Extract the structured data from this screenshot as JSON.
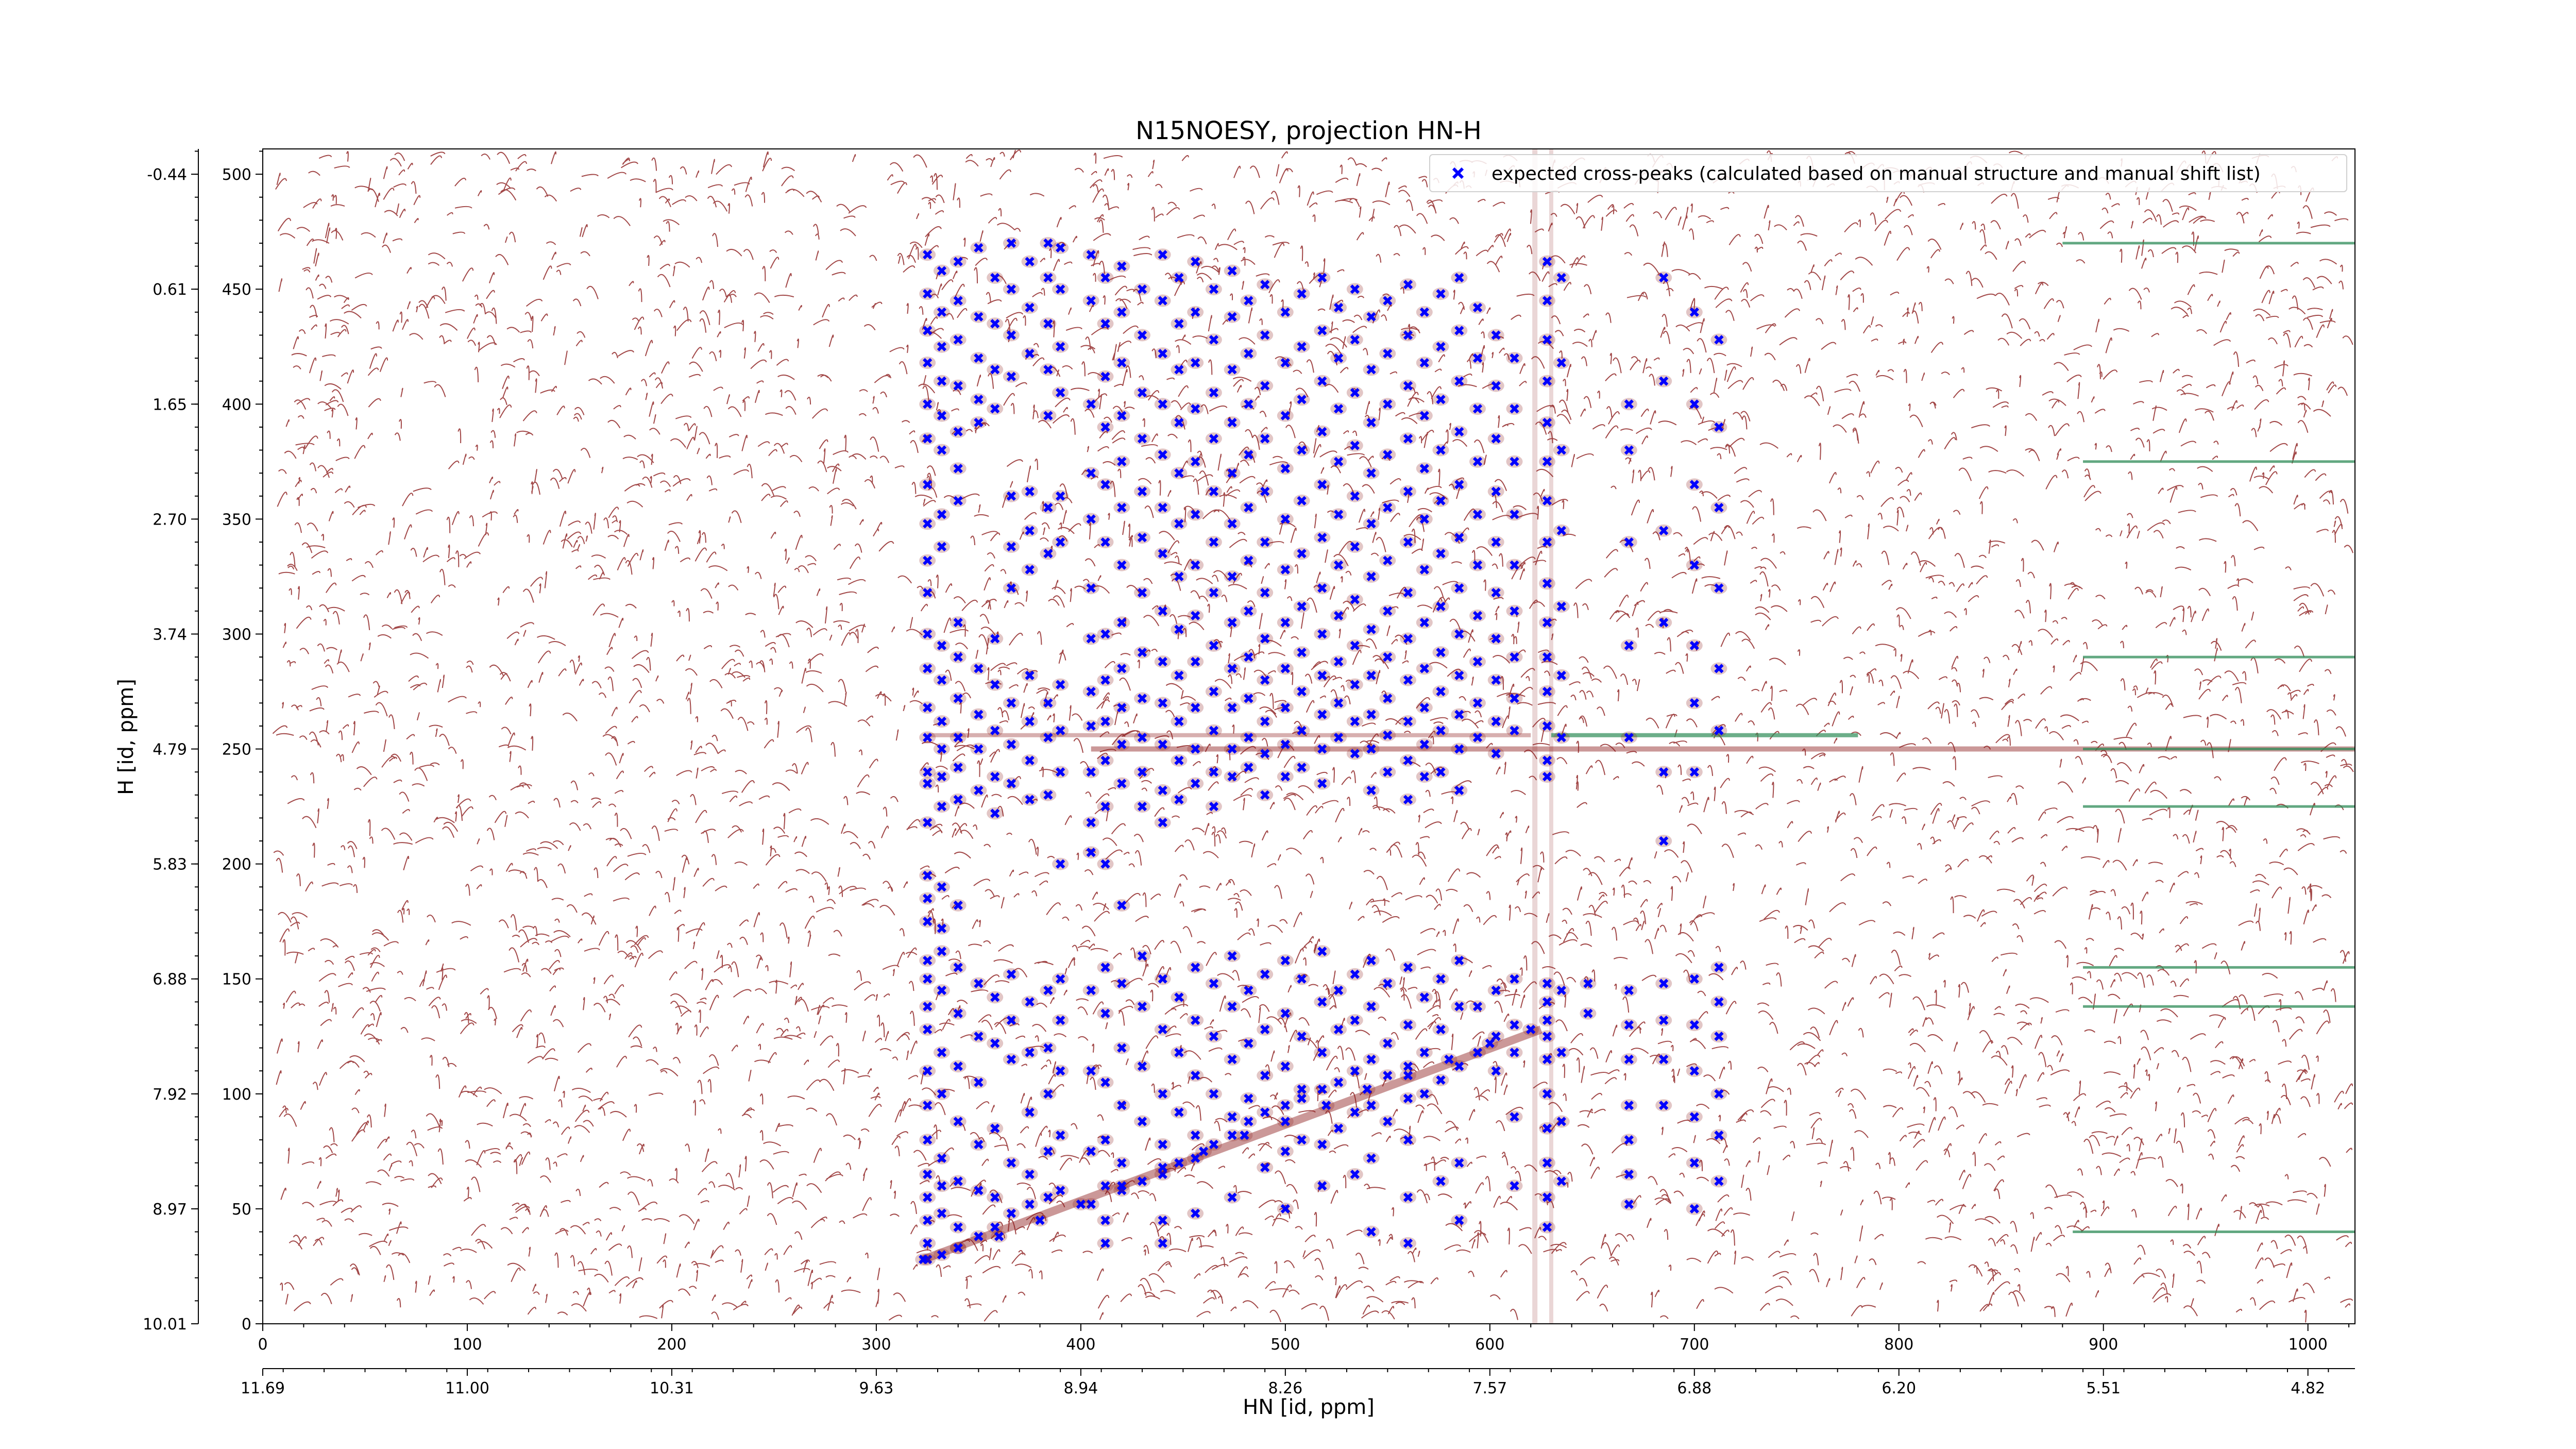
{
  "chart_data": {
    "type": "scatter",
    "title": "N15NOESY, projection HN-H",
    "xlabel": "HN [id, ppm]",
    "ylabel": "H [id, ppm]",
    "xlim": [
      0,
      1023
    ],
    "ylim": [
      0,
      511
    ],
    "x_index_ticks": [
      0,
      100,
      200,
      300,
      400,
      500,
      600,
      700,
      800,
      900,
      1000
    ],
    "x_ppm_ticks": [
      "11.69",
      "11.00",
      "10.31",
      "9.63",
      "8.94",
      "8.26",
      "7.57",
      "6.88",
      "6.20",
      "5.51",
      "4.82"
    ],
    "y_index_ticks": [
      0,
      50,
      100,
      150,
      200,
      250,
      300,
      350,
      400,
      450,
      500
    ],
    "y_ppm_ticks": [
      "10.01",
      "8.97",
      "7.92",
      "6.88",
      "5.83",
      "4.79",
      "3.74",
      "2.70",
      "1.65",
      "0.61",
      "-0.44"
    ],
    "legend": {
      "position": "top-right",
      "entries": [
        "expected cross-peaks (calculated based on manual structure and manual shift list)"
      ]
    },
    "colors": {
      "peaks": "#0000ff",
      "positive_contours": "#8b1a1a",
      "negative_contours": "#2e8b57"
    },
    "series": [
      {
        "name": "expected cross-peaks (calculated based on manual structure and manual shift list)",
        "marker": "x",
        "columns": [
          {
            "x": 325,
            "y": [
              465,
              448,
              432,
              418,
              400,
              385,
              365,
              348,
              332,
              318,
              300,
              285,
              268,
              255,
              240,
              235,
              218,
              195,
              185,
              175,
              158,
              150,
              138,
              128,
              110,
              95,
              80,
              65,
              55,
              45,
              35,
              28
            ]
          },
          {
            "x": 332,
            "y": [
              458,
              440,
              425,
              410,
              395,
              380,
              352,
              338,
              295,
              280,
              262,
              250,
              238,
              225,
              190,
              172,
              162,
              145,
              118,
              100,
              72,
              60,
              48,
              30
            ]
          },
          {
            "x": 340,
            "y": [
              462,
              445,
              428,
              408,
              388,
              372,
              358,
              305,
              290,
              272,
              255,
              242,
              228,
              182,
              155,
              135,
              112,
              88,
              62,
              42,
              33
            ]
          },
          {
            "x": 350,
            "y": [
              468,
              438,
              420,
              402,
              392,
              285,
              265,
              250,
              232,
              148,
              125,
              105,
              78,
              58,
              38
            ]
          },
          {
            "x": 358,
            "y": [
              455,
              435,
              415,
              398,
              298,
              278,
              258,
              238,
              222,
              142,
              122,
              85,
              55,
              42
            ]
          },
          {
            "x": 366,
            "y": [
              470,
              450,
              430,
              412,
              360,
              338,
              320,
              270,
              252,
              235,
              152,
              132,
              115,
              70,
              48
            ]
          },
          {
            "x": 375,
            "y": [
              462,
              442,
              422,
              362,
              345,
              328,
              282,
              262,
              245,
              228,
              140,
              118,
              92,
              65,
              52
            ]
          },
          {
            "x": 384,
            "y": [
              470,
              455,
              435,
              415,
              395,
              355,
              335,
              270,
              255,
              230,
              145,
              120,
              100,
              75,
              55
            ]
          },
          {
            "x": 390,
            "y": [
              468,
              450,
              425,
              405,
              360,
              340,
              278,
              258,
              240,
              200,
              150,
              132,
              110,
              82,
              58
            ]
          },
          {
            "x": 405,
            "y": [
              465,
              445,
              400,
              370,
              350,
              320,
              298,
              275,
              260,
              240,
              218,
              205,
              145,
              110,
              75,
              52
            ]
          },
          {
            "x": 412,
            "y": [
              455,
              435,
              412,
              390,
              365,
              340,
              300,
              280,
              262,
              245,
              225,
              200,
              155,
              135,
              105,
              80,
              60,
              45,
              35
            ]
          },
          {
            "x": 420,
            "y": [
              460,
              440,
              418,
              395,
              375,
              355,
              330,
              305,
              285,
              268,
              252,
              235,
              182,
              148,
              120,
              95,
              70,
              58
            ]
          },
          {
            "x": 430,
            "y": [
              450,
              430,
              405,
              385,
              362,
              342,
              318,
              292,
              272,
              255,
              240,
              225,
              160,
              138,
              112,
              88,
              62
            ]
          },
          {
            "x": 440,
            "y": [
              465,
              445,
              422,
              400,
              378,
              355,
              335,
              310,
              288,
              270,
              252,
              232,
              218,
              150,
              128,
              100,
              78,
              65,
              45,
              35
            ]
          },
          {
            "x": 448,
            "y": [
              455,
              435,
              415,
              392,
              370,
              348,
              325,
              302,
              282,
              262,
              245,
              228,
              142,
              118,
              92,
              70
            ]
          },
          {
            "x": 456,
            "y": [
              462,
              440,
              418,
              398,
              375,
              352,
              330,
              308,
              288,
              268,
              250,
              235,
              155,
              132,
              108,
              82,
              72,
              48
            ]
          },
          {
            "x": 465,
            "y": [
              450,
              428,
              405,
              385,
              362,
              340,
              318,
              295,
              275,
              258,
              240,
              225,
              148,
              125,
              100,
              78
            ]
          },
          {
            "x": 474,
            "y": [
              458,
              438,
              415,
              392,
              370,
              348,
              325,
              305,
              285,
              268,
              250,
              238,
              160,
              138,
              115,
              90,
              82,
              55
            ]
          },
          {
            "x": 482,
            "y": [
              445,
              422,
              400,
              378,
              355,
              332,
              310,
              290,
              272,
              255,
              242,
              145,
              122,
              98,
              88
            ]
          },
          {
            "x": 490,
            "y": [
              452,
              430,
              408,
              385,
              362,
              340,
              318,
              298,
              280,
              262,
              248,
              230,
              152,
              128,
              108,
              92,
              68
            ]
          },
          {
            "x": 500,
            "y": [
              440,
              418,
              395,
              372,
              350,
              328,
              305,
              285,
              268,
              252,
              238,
              158,
              135,
              112,
              95,
              75,
              50
            ]
          },
          {
            "x": 508,
            "y": [
              448,
              425,
              402,
              380,
              358,
              335,
              312,
              292,
              275,
              258,
              242,
              150,
              125,
              102,
              98,
              80
            ]
          },
          {
            "x": 518,
            "y": [
              455,
              432,
              410,
              388,
              365,
              342,
              320,
              300,
              282,
              265,
              250,
              235,
              162,
              140,
              118,
              102,
              78,
              60
            ]
          },
          {
            "x": 526,
            "y": [
              442,
              420,
              398,
              375,
              352,
              330,
              308,
              288,
              270,
              255,
              145,
              128,
              105,
              85
            ]
          },
          {
            "x": 534,
            "y": [
              450,
              428,
              405,
              382,
              360,
              338,
              315,
              295,
              278,
              262,
              248,
              152,
              132,
              110,
              92,
              65
            ]
          },
          {
            "x": 542,
            "y": [
              438,
              415,
              392,
              370,
              348,
              325,
              302,
              282,
              265,
              250,
              232,
              158,
              138,
              115,
              95,
              72,
              40
            ]
          },
          {
            "x": 550,
            "y": [
              445,
              422,
              400,
              378,
              355,
              332,
              310,
              290,
              272,
              256,
              240,
              148,
              122,
              108,
              88
            ]
          },
          {
            "x": 560,
            "y": [
              452,
              430,
              408,
              385,
              362,
              340,
              318,
              298,
              280,
              262,
              245,
              228,
              155,
              130,
              112,
              98,
              80,
              55,
              35
            ]
          },
          {
            "x": 568,
            "y": [
              440,
              418,
              395,
              372,
              350,
              328,
              305,
              285,
              268,
              252,
              238,
              142,
              118,
              100
            ]
          },
          {
            "x": 576,
            "y": [
              448,
              425,
              402,
              380,
              358,
              335,
              312,
              292,
              275,
              258,
              240,
              150,
              128,
              106,
              62
            ]
          },
          {
            "x": 585,
            "y": [
              455,
              432,
              410,
              388,
              365,
              342,
              320,
              300,
              282,
              265,
              250,
              232,
              158,
              138,
              112,
              70,
              45
            ]
          },
          {
            "x": 594,
            "y": [
              442,
              420,
              398,
              375,
              352,
              330,
              308,
              288,
              270,
              255,
              138,
              118
            ]
          },
          {
            "x": 603,
            "y": [
              430,
              408,
              385,
              362,
              340,
              318,
              298,
              280,
              262,
              248,
              145,
              125,
              110
            ]
          },
          {
            "x": 612,
            "y": [
              420,
              398,
              375,
              352,
              330,
              310,
              290,
              272,
              258,
              150,
              130,
              118,
              90,
              60
            ]
          },
          {
            "x": 628,
            "y": [
              462,
              445,
              428,
              410,
              392,
              375,
              358,
              340,
              322,
              305,
              290,
              275,
              260,
              245,
              238,
              148,
              140,
              132,
              125,
              115,
              100,
              85,
              70,
              55,
              42
            ]
          },
          {
            "x": 635,
            "y": [
              455,
              418,
              380,
              345,
              312,
              282,
              255,
              145,
              118,
              88,
              62
            ]
          },
          {
            "x": 648,
            "y": [
              148,
              135
            ]
          },
          {
            "x": 668,
            "y": [
              400,
              380,
              340,
              295,
              255,
              145,
              130,
              115,
              95,
              80,
              65,
              52
            ]
          },
          {
            "x": 685,
            "y": [
              455,
              410,
              345,
              305,
              240,
              210,
              148,
              132,
              115,
              95
            ]
          },
          {
            "x": 700,
            "y": [
              440,
              400,
              365,
              330,
              295,
              270,
              240,
              150,
              130,
              110,
              90,
              70,
              50
            ]
          },
          {
            "x": 712,
            "y": [
              428,
              390,
              355,
              320,
              285,
              258,
              155,
              140,
              125,
              100,
              82,
              62
            ]
          }
        ],
        "diagonal": [
          [
            323,
            28
          ],
          [
            340,
            33
          ],
          [
            360,
            38
          ],
          [
            380,
            45
          ],
          [
            400,
            52
          ],
          [
            420,
            60
          ],
          [
            440,
            68
          ],
          [
            460,
            75
          ],
          [
            480,
            82
          ],
          [
            500,
            88
          ],
          [
            520,
            95
          ],
          [
            540,
            102
          ],
          [
            560,
            108
          ],
          [
            580,
            115
          ],
          [
            600,
            122
          ],
          [
            620,
            128
          ]
        ]
      }
    ]
  }
}
